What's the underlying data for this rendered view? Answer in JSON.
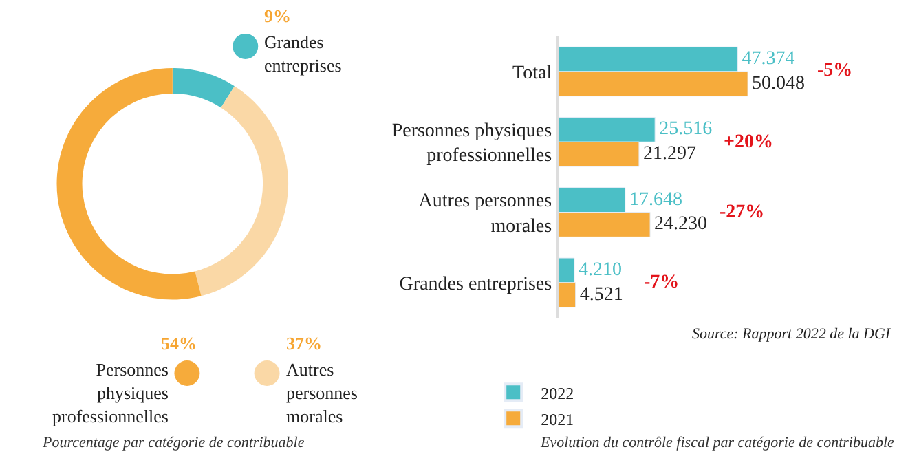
{
  "chart_data": [
    {
      "type": "donut",
      "title": "Pourcentage par catégorie de contribuable",
      "categories": [
        "Grandes entreprises",
        "Autres personnes morales",
        "Personnes physiques professionnelles"
      ],
      "values": [
        9,
        37,
        54
      ],
      "colors": [
        "#4bbfc6",
        "#fad8a6",
        "#f6ab3b"
      ],
      "value_labels": [
        "9%",
        "37%",
        "54%"
      ],
      "legend": "right"
    },
    {
      "type": "bar",
      "orientation": "horizontal",
      "title": "Evolution du contrôle fiscal par catégorie de contribuable",
      "categories": [
        "Total",
        "Personnes physiques professionnelles",
        "Autres personnes morales",
        "Grandes entreprises"
      ],
      "series": [
        {
          "name": "2022",
          "color": "#4bbfc6",
          "values": [
            47374,
            25516,
            17648,
            4210
          ],
          "value_labels": [
            "47.374",
            "25.516",
            "17.648",
            "4.210"
          ]
        },
        {
          "name": "2021",
          "color": "#f6ab3b",
          "values": [
            50048,
            21297,
            24230,
            4521
          ],
          "value_labels": [
            "50.048",
            "21.297",
            "24.230",
            "4.521"
          ]
        }
      ],
      "tick_labels": "y",
      "legend": "bottom left",
      "annotations": [
        "-5%",
        "+20%",
        "-27%",
        "-7%",
        "Source: Rapport 2022 de la DGI"
      ]
    }
  ]
}
